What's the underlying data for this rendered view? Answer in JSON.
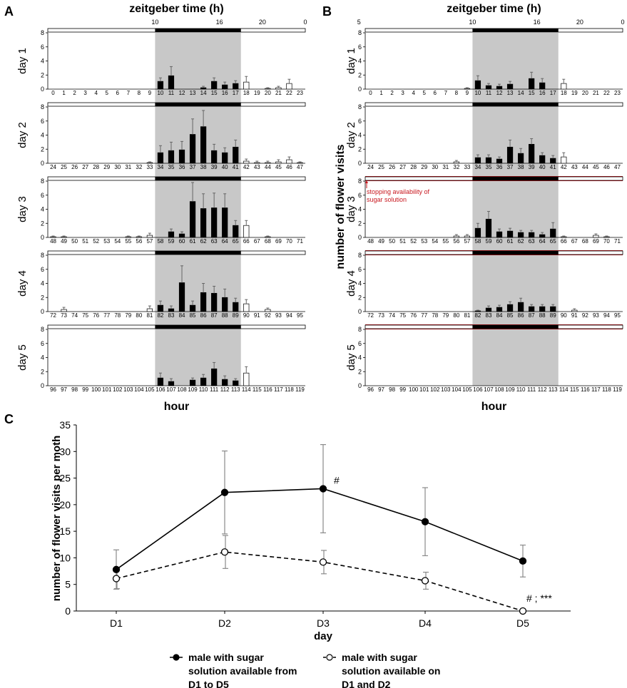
{
  "figure": {
    "panel_labels": [
      "A",
      "B",
      "C"
    ],
    "zeitgeber_title": "zeitgeber time (h)",
    "y_label_top": "number of flower visits",
    "x_label_top": "hour",
    "zt_ticks": [
      {
        "hour": 10,
        "label": "10"
      },
      {
        "hour": 16,
        "label": "16"
      },
      {
        "hour": 20,
        "label": "20"
      },
      {
        "hour": 24,
        "label": "0"
      },
      {
        "hour": 29,
        "label": "5"
      }
    ],
    "red_note_line1": "stopping availability of",
    "red_note_line2": "sugar solution"
  },
  "chart_data": [
    {
      "panel": "A",
      "type": "bar",
      "ylim": [
        0,
        8
      ],
      "yticks": [
        "0",
        "2",
        "4",
        "6",
        "8"
      ],
      "dark_phase_hours": [
        10,
        18
      ],
      "days": [
        {
          "label": "day 1",
          "start_hour": 0,
          "values": [
            0,
            0,
            0,
            0,
            0,
            0,
            0,
            0,
            0,
            0,
            1.1,
            1.9,
            0,
            0,
            0.2,
            1.1,
            0.6,
            0.8,
            1.0,
            0,
            0.1,
            0.2,
            0.8,
            0
          ],
          "errors": [
            0,
            0,
            0,
            0,
            0,
            0,
            0,
            0,
            0,
            0,
            0.5,
            1.3,
            0,
            0,
            0.2,
            0.5,
            0.4,
            0.4,
            0.8,
            0,
            0.1,
            0.2,
            0.6,
            0
          ]
        },
        {
          "label": "day 2",
          "start_hour": 24,
          "values": [
            0,
            0,
            0,
            0,
            0,
            0,
            0,
            0,
            0,
            0.1,
            1.5,
            1.8,
            1.9,
            4.1,
            5.2,
            1.8,
            1.5,
            2.3,
            0.3,
            0.1,
            0.1,
            0.2,
            0.5,
            0.1
          ],
          "errors": [
            0,
            0,
            0,
            0,
            0,
            0,
            0,
            0,
            0,
            0.1,
            1.0,
            1.2,
            1.2,
            2.2,
            2.3,
            0.9,
            0.7,
            1.0,
            0.3,
            0.2,
            0.2,
            0.3,
            0.4,
            0.1
          ]
        },
        {
          "label": "day 3",
          "start_hour": 48,
          "values": [
            0.1,
            0.1,
            0,
            0,
            0,
            0,
            0,
            0.1,
            0.1,
            0.3,
            0,
            0.8,
            0.5,
            5.1,
            4.1,
            4.2,
            4.2,
            1.7,
            1.7,
            0,
            0.1,
            0,
            0,
            0
          ],
          "errors": [
            0.1,
            0.1,
            0,
            0,
            0,
            0,
            0,
            0.1,
            0.1,
            0.3,
            0,
            0.4,
            0.3,
            2.7,
            2.1,
            2.1,
            2.0,
            0.7,
            0.7,
            0,
            0.1,
            0,
            0,
            0
          ]
        },
        {
          "label": "day 4",
          "start_hour": 72,
          "values": [
            0,
            0.3,
            0,
            0,
            0,
            0,
            0,
            0,
            0,
            0.4,
            0.9,
            0.4,
            4.1,
            0.9,
            2.7,
            2.6,
            2.0,
            1.3,
            1.1,
            0,
            0.3,
            0,
            0,
            0
          ],
          "errors": [
            0,
            0.3,
            0,
            0,
            0,
            0,
            0,
            0,
            0,
            0.4,
            0.6,
            0.4,
            2.4,
            0.6,
            1.3,
            1.0,
            1.2,
            0.6,
            0.6,
            0,
            0.2,
            0,
            0,
            0
          ]
        },
        {
          "label": "day 5",
          "start_hour": 96,
          "values": [
            0,
            0,
            0,
            0,
            0,
            0,
            0,
            0,
            0,
            0,
            1.1,
            0.6,
            0,
            0.8,
            1.1,
            2.4,
            0.9,
            0.7,
            1.8,
            0,
            0,
            0,
            0,
            0
          ],
          "errors": [
            0,
            0,
            0,
            0,
            0,
            0,
            0,
            0,
            0,
            0,
            0.7,
            0.4,
            0,
            0.3,
            0.5,
            0.9,
            0.5,
            0.3,
            0.9,
            0,
            0,
            0,
            0,
            0
          ]
        }
      ]
    },
    {
      "panel": "B",
      "type": "bar",
      "ylim": [
        0,
        8
      ],
      "yticks": [
        "0",
        "2",
        "4",
        "6",
        "8"
      ],
      "dark_phase_hours": [
        10,
        18
      ],
      "days": [
        {
          "label": "day 1",
          "start_hour": 0,
          "values": [
            0,
            0,
            0,
            0,
            0,
            0,
            0,
            0,
            0,
            0.1,
            1.2,
            0.5,
            0.4,
            0.7,
            0,
            1.5,
            0.9,
            0,
            0.8,
            0,
            0,
            0,
            0,
            0
          ],
          "errors": [
            0,
            0,
            0,
            0,
            0,
            0,
            0,
            0,
            0,
            0.1,
            0.7,
            0.3,
            0.3,
            0.4,
            0,
            0.9,
            0.6,
            0,
            0.6,
            0,
            0,
            0,
            0,
            0
          ]
        },
        {
          "label": "day 2",
          "start_hour": 24,
          "values": [
            0,
            0,
            0,
            0,
            0,
            0,
            0,
            0,
            0.2,
            0,
            0.8,
            0.8,
            0.6,
            2.3,
            1.4,
            2.7,
            1.1,
            0.7,
            0.9,
            0,
            0,
            0,
            0,
            0
          ],
          "errors": [
            0,
            0,
            0,
            0,
            0,
            0,
            0,
            0,
            0.2,
            0,
            0.4,
            0.4,
            0.3,
            1.0,
            0.7,
            0.8,
            0.4,
            0.4,
            0.6,
            0,
            0,
            0,
            0,
            0
          ]
        },
        {
          "label": "day 3",
          "start_hour": 48,
          "values": [
            0,
            0,
            0,
            0,
            0,
            0,
            0,
            0,
            0.2,
            0.2,
            1.3,
            2.6,
            0.8,
            0.9,
            0.7,
            0.7,
            0.4,
            1.2,
            0.1,
            0,
            0,
            0.3,
            0.1,
            0
          ],
          "errors": [
            0,
            0,
            0,
            0,
            0,
            0,
            0,
            0,
            0.2,
            0.2,
            0.7,
            1.1,
            0.4,
            0.4,
            0.3,
            0.3,
            0.3,
            0.9,
            0.1,
            0,
            0,
            0.2,
            0.1,
            0
          ]
        },
        {
          "label": "day 4",
          "start_hour": 72,
          "values": [
            0,
            0,
            0,
            0,
            0,
            0,
            0,
            0,
            0,
            0,
            0.1,
            0.5,
            0.6,
            1.0,
            1.3,
            0.7,
            0.7,
            0.7,
            0,
            0.2,
            0,
            0,
            0,
            0
          ],
          "errors": [
            0,
            0,
            0,
            0,
            0,
            0,
            0,
            0,
            0,
            0,
            0.1,
            0.3,
            0.3,
            0.4,
            0.6,
            0.3,
            0.3,
            0.3,
            0,
            0.2,
            0,
            0,
            0,
            0
          ]
        },
        {
          "label": "day 5",
          "start_hour": 96,
          "values": [
            0,
            0,
            0,
            0,
            0,
            0,
            0,
            0,
            0,
            0,
            0,
            0,
            0,
            0,
            0,
            0,
            0,
            0,
            0,
            0,
            0,
            0,
            0,
            0
          ],
          "errors": [
            0,
            0,
            0,
            0,
            0,
            0,
            0,
            0,
            0,
            0,
            0,
            0,
            0,
            0,
            0,
            0,
            0,
            0,
            0,
            0,
            0,
            0,
            0,
            0
          ]
        }
      ],
      "sugar_removed_from_day": 3
    },
    {
      "panel": "C",
      "type": "line",
      "categories": [
        "D1",
        "D2",
        "D3",
        "D4",
        "D5"
      ],
      "xlabel": "day",
      "ylabel": "number of flower visits per moth",
      "ylim": [
        0,
        35
      ],
      "yticks": [
        "0",
        "5",
        "10",
        "15",
        "20",
        "25",
        "30",
        "35"
      ],
      "series": [
        {
          "name": "male with sugar solution available from D1 to D5",
          "legend_lines": [
            "male with sugar",
            "solution available from",
            "D1 to D5"
          ],
          "marker": "filled",
          "line": "solid",
          "values": [
            7.8,
            22.3,
            23.0,
            16.8,
            9.4
          ],
          "errors": [
            3.7,
            7.8,
            8.3,
            6.4,
            3.0
          ]
        },
        {
          "name": "male with sugar solution available on D1 and D2",
          "legend_lines": [
            "male with sugar",
            "solution available on",
            "D1 and D2"
          ],
          "marker": "open",
          "line": "dashed",
          "values": [
            6.1,
            11.1,
            9.2,
            5.7,
            0.0
          ],
          "errors": [
            1.9,
            3.1,
            2.2,
            1.6,
            0.0
          ]
        }
      ],
      "annotations": [
        {
          "category": "D3",
          "text": "#"
        },
        {
          "category": "D5",
          "text": "# ; ***"
        }
      ]
    }
  ]
}
